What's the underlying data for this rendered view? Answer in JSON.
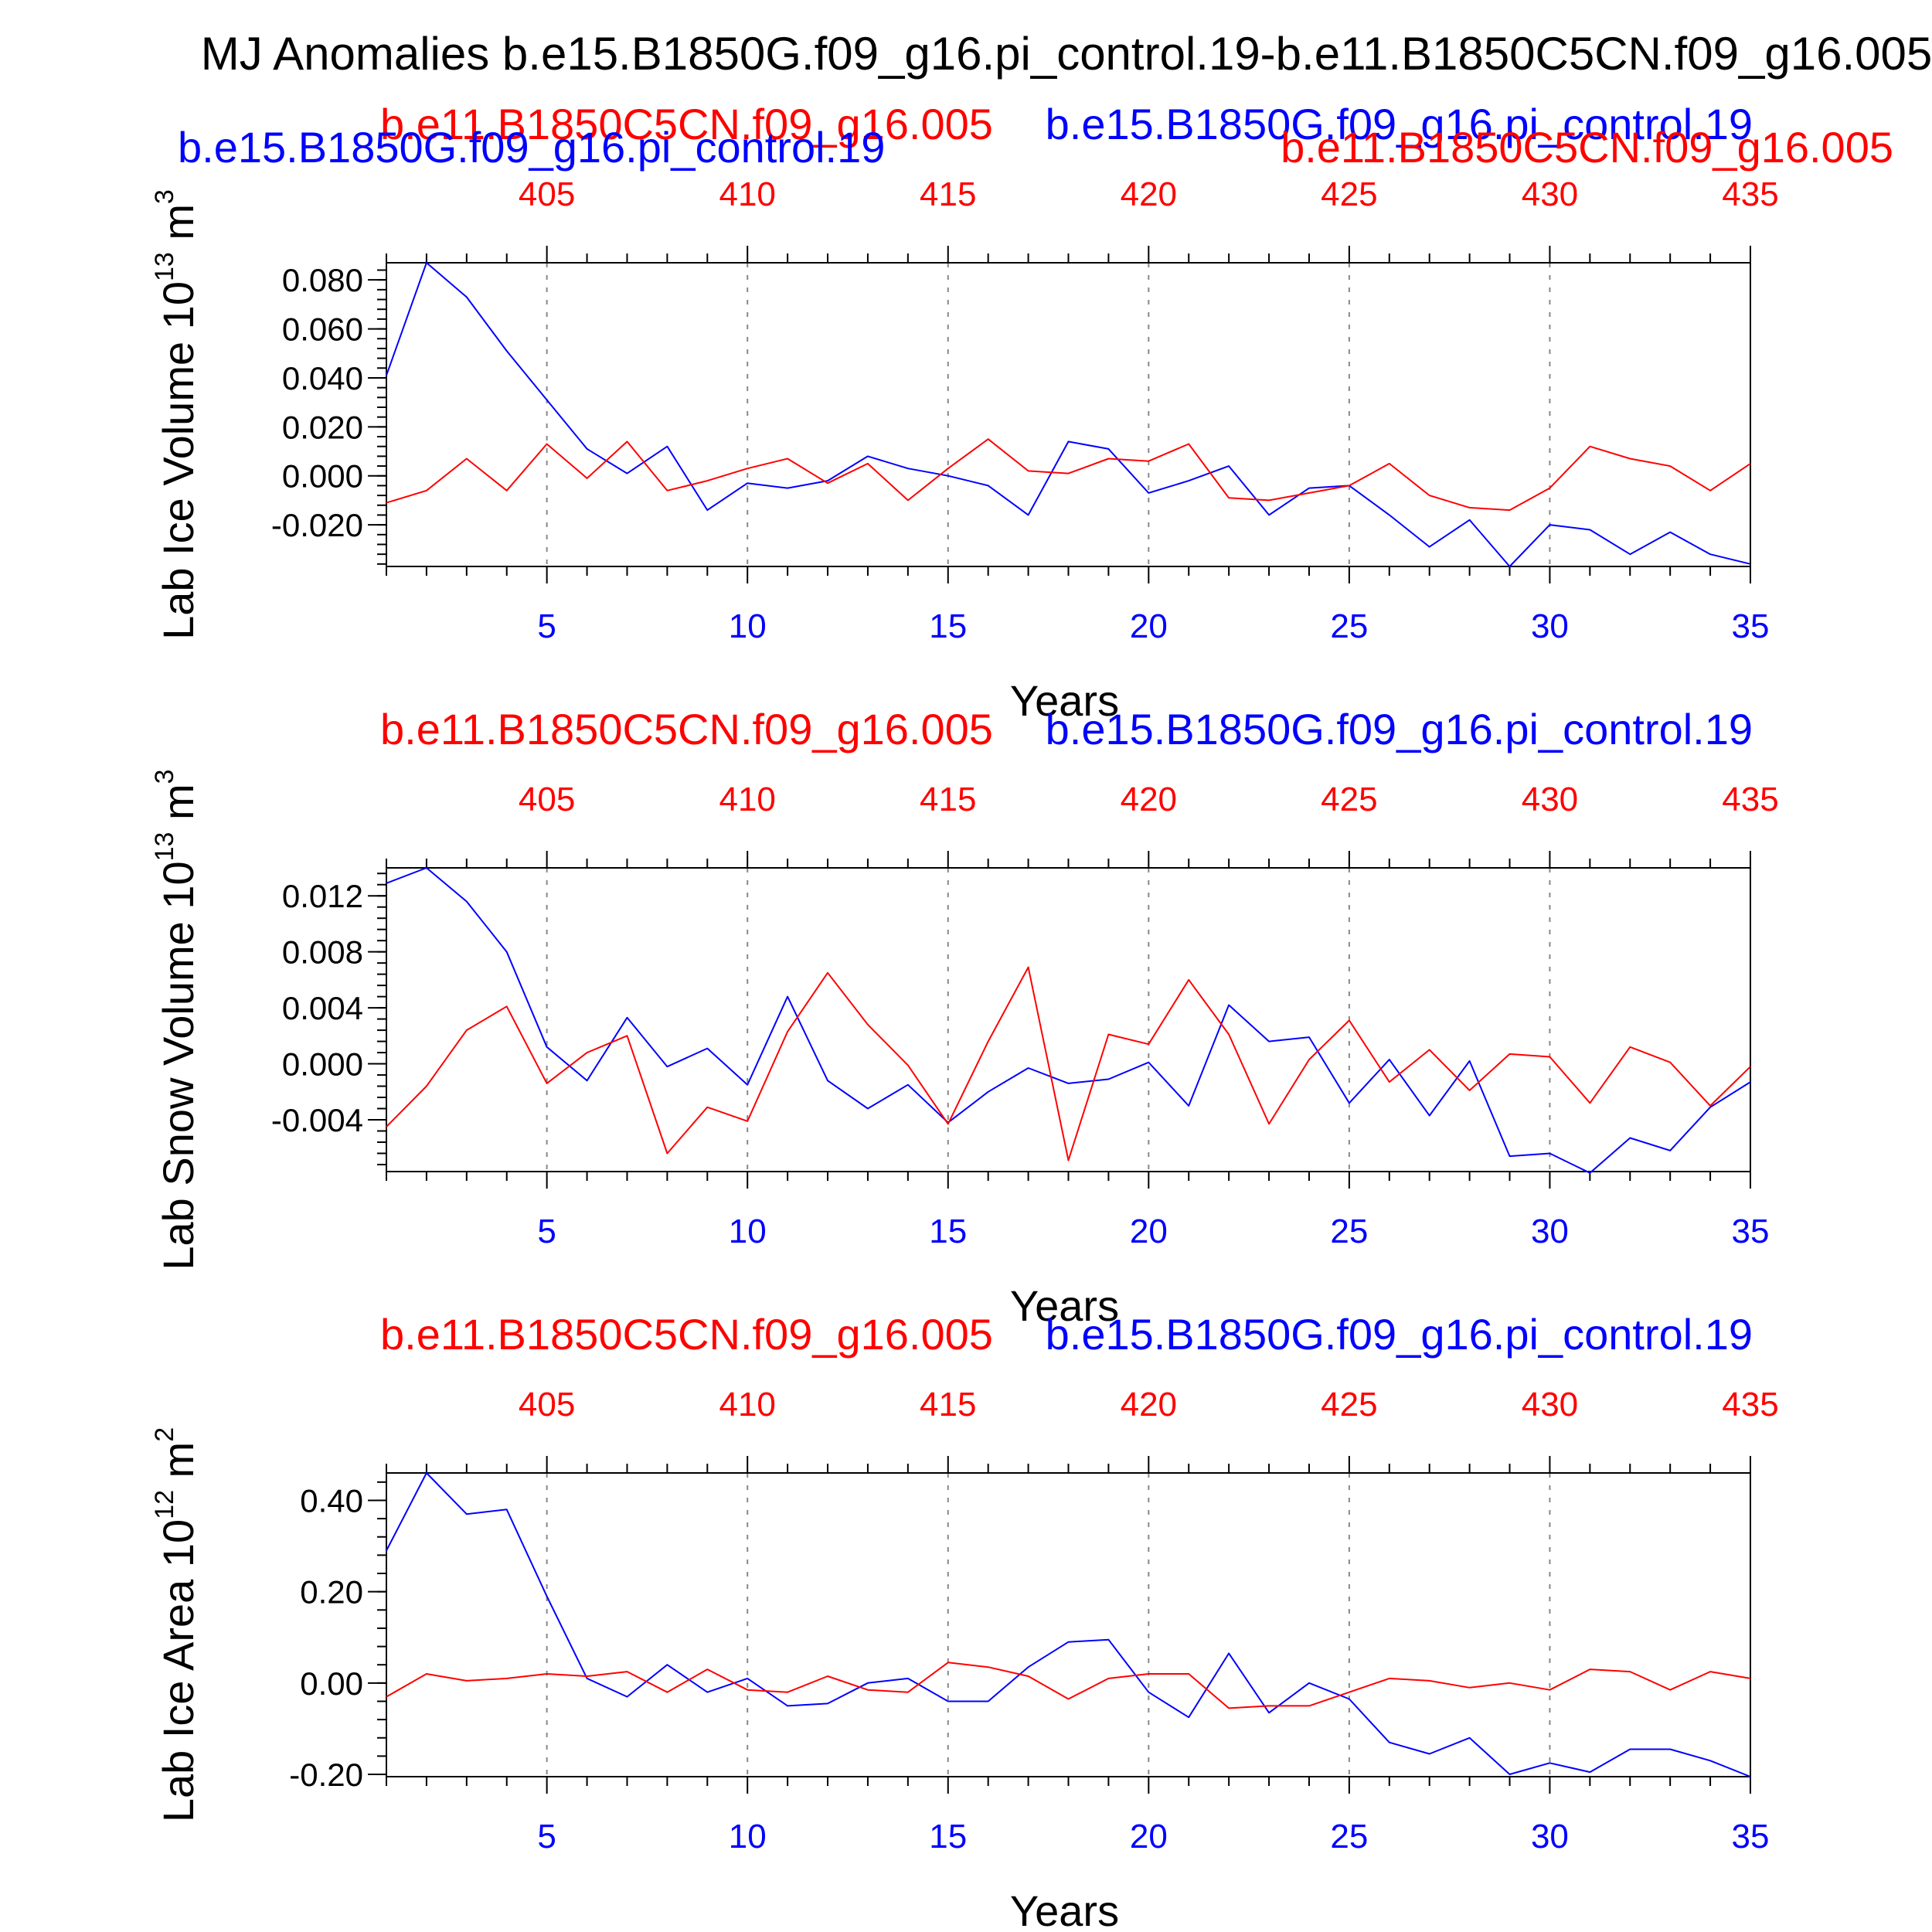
{
  "title": "MJ Anomalies b.e15.B1850G.f09_g16.pi_control.19-b.e11.B1850C5CN.f09_g16.005",
  "colors": {
    "blue": "#0000ff",
    "red": "#ff0000",
    "axis": "#000000",
    "grid": "#888888"
  },
  "chart_data": [
    {
      "type": "line",
      "ylabel": "Lab Ice Volume 10",
      "ylabel_exp": "13",
      "ylabel_unit": " m",
      "ylabel_unit_exp": "3",
      "xlabel": "Years",
      "legend_red": "b.e11.B1850C5CN.f09_g16.005",
      "legend_blue": "b.e15.B1850G.f09_g16.pi_control.19",
      "extra_legend_blue": "b.e15.B1850G.f09_g16.pi_control.19",
      "extra_legend_red": "b.e11.B1850C5CN.f09_g16.005",
      "xlim": [
        1,
        35
      ],
      "ylim": [
        -0.037,
        0.087
      ],
      "bottom_ticks": [
        5,
        10,
        15,
        20,
        25,
        30,
        35
      ],
      "top_ticks": [
        405,
        410,
        415,
        420,
        425,
        430,
        435
      ],
      "y_ticks": [
        "0.080",
        "0.060",
        "0.040",
        "0.020",
        "0.000",
        "-0.020"
      ],
      "y_tick_values": [
        0.08,
        0.06,
        0.04,
        0.02,
        0.0,
        -0.02
      ],
      "y_minor_step": 0.004,
      "x": [
        1,
        2,
        3,
        4,
        5,
        6,
        7,
        8,
        9,
        10,
        11,
        12,
        13,
        14,
        15,
        16,
        17,
        18,
        19,
        20,
        21,
        22,
        23,
        24,
        25,
        26,
        27,
        28,
        29,
        30,
        31,
        32,
        33,
        34,
        35
      ],
      "series": [
        {
          "color": "blue",
          "values": [
            0.041,
            0.087,
            0.073,
            0.051,
            0.031,
            0.011,
            0.001,
            0.012,
            -0.014,
            -0.003,
            -0.005,
            -0.002,
            0.008,
            0.003,
            0.0,
            -0.004,
            -0.016,
            0.014,
            0.011,
            -0.007,
            -0.002,
            0.004,
            -0.016,
            -0.005,
            -0.004,
            -0.016,
            -0.029,
            -0.018,
            -0.037,
            -0.02,
            -0.022,
            -0.032,
            -0.023,
            -0.032,
            -0.036
          ]
        },
        {
          "color": "red",
          "values": [
            -0.011,
            -0.006,
            0.007,
            -0.006,
            0.013,
            -0.001,
            0.014,
            -0.006,
            -0.002,
            0.003,
            0.007,
            -0.003,
            0.005,
            -0.01,
            0.003,
            0.015,
            0.002,
            0.001,
            0.007,
            0.006,
            0.013,
            -0.009,
            -0.01,
            -0.007,
            -0.004,
            0.005,
            -0.008,
            -0.013,
            -0.014,
            -0.005,
            0.012,
            0.007,
            0.004,
            -0.006,
            0.005
          ]
        }
      ]
    },
    {
      "type": "line",
      "ylabel": "Lab Snow Volume 10",
      "ylabel_exp": "13",
      "ylabel_unit": " m",
      "ylabel_unit_exp": "3",
      "xlabel": "Years",
      "legend_red": "b.e11.B1850C5CN.f09_g16.005",
      "legend_blue": "b.e15.B1850G.f09_g16.pi_control.19",
      "xlim": [
        1,
        35
      ],
      "ylim": [
        -0.0077,
        0.014
      ],
      "bottom_ticks": [
        5,
        10,
        15,
        20,
        25,
        30,
        35
      ],
      "top_ticks": [
        405,
        410,
        415,
        420,
        425,
        430,
        435
      ],
      "y_ticks": [
        "0.012",
        "0.008",
        "0.004",
        "0.000",
        "-0.004"
      ],
      "y_tick_values": [
        0.012,
        0.008,
        0.004,
        0.0,
        -0.004
      ],
      "y_minor_step": 0.0008,
      "x": [
        1,
        2,
        3,
        4,
        5,
        6,
        7,
        8,
        9,
        10,
        11,
        12,
        13,
        14,
        15,
        16,
        17,
        18,
        19,
        20,
        21,
        22,
        23,
        24,
        25,
        26,
        27,
        28,
        29,
        30,
        31,
        32,
        33,
        34,
        35
      ],
      "series": [
        {
          "color": "blue",
          "values": [
            0.0129,
            0.014,
            0.0116,
            0.008,
            0.0012,
            -0.0012,
            0.0033,
            -0.0002,
            0.0011,
            -0.0015,
            0.0048,
            -0.0012,
            -0.0032,
            -0.0015,
            -0.0042,
            -0.002,
            -0.0003,
            -0.0014,
            -0.0011,
            0.0001,
            -0.003,
            0.0042,
            0.0016,
            0.0019,
            -0.0028,
            0.0003,
            -0.0037,
            0.0002,
            -0.0066,
            -0.0064,
            -0.0078,
            -0.0053,
            -0.0062,
            -0.0031,
            -0.0013
          ]
        },
        {
          "color": "red",
          "values": [
            -0.0045,
            -0.0016,
            0.0024,
            0.0041,
            -0.0014,
            0.0008,
            0.002,
            -0.0064,
            -0.0031,
            -0.0041,
            0.0023,
            0.0065,
            0.0028,
            -0.0001,
            -0.0043,
            0.0016,
            0.0069,
            -0.0069,
            0.0021,
            0.0014,
            0.006,
            0.0021,
            -0.0043,
            0.0003,
            0.0031,
            -0.0013,
            0.001,
            -0.0019,
            0.0007,
            0.0005,
            -0.0028,
            0.0012,
            0.0001,
            -0.003,
            -0.0002
          ]
        }
      ]
    },
    {
      "type": "line",
      "ylabel": "Lab Ice Area 10",
      "ylabel_exp": "12",
      "ylabel_unit": " m",
      "ylabel_unit_exp": "2",
      "xlabel": "Years",
      "legend_red": "b.e11.B1850C5CN.f09_g16.005",
      "legend_blue": "b.e15.B1850G.f09_g16.pi_control.19",
      "xlim": [
        1,
        35
      ],
      "ylim": [
        -0.205,
        0.46
      ],
      "bottom_ticks": [
        5,
        10,
        15,
        20,
        25,
        30,
        35
      ],
      "top_ticks": [
        405,
        410,
        415,
        420,
        425,
        430,
        435
      ],
      "y_ticks": [
        "0.40",
        "0.20",
        "0.00",
        "-0.20"
      ],
      "y_tick_values": [
        0.4,
        0.2,
        0.0,
        -0.2
      ],
      "y_minor_step": 0.04,
      "x": [
        1,
        2,
        3,
        4,
        5,
        6,
        7,
        8,
        9,
        10,
        11,
        12,
        13,
        14,
        15,
        16,
        17,
        18,
        19,
        20,
        21,
        22,
        23,
        24,
        25,
        26,
        27,
        28,
        29,
        30,
        31,
        32,
        33,
        34,
        35
      ],
      "series": [
        {
          "color": "blue",
          "values": [
            0.29,
            0.46,
            0.37,
            0.38,
            0.19,
            0.01,
            -0.03,
            0.04,
            -0.02,
            0.01,
            -0.05,
            -0.045,
            0.0,
            0.01,
            -0.04,
            -0.04,
            0.035,
            0.09,
            0.095,
            -0.02,
            -0.075,
            0.065,
            -0.065,
            0.0,
            -0.035,
            -0.13,
            -0.155,
            -0.12,
            -0.2,
            -0.175,
            -0.195,
            -0.145,
            -0.145,
            -0.17,
            -0.205
          ]
        },
        {
          "color": "red",
          "values": [
            -0.03,
            0.02,
            0.005,
            0.01,
            0.02,
            0.015,
            0.025,
            -0.02,
            0.03,
            -0.015,
            -0.02,
            0.015,
            -0.015,
            -0.02,
            0.045,
            0.035,
            0.015,
            -0.035,
            0.01,
            0.02,
            0.02,
            -0.055,
            -0.05,
            -0.05,
            -0.02,
            0.01,
            0.005,
            -0.01,
            0.0,
            -0.015,
            0.03,
            0.025,
            -0.015,
            0.025,
            0.01
          ]
        }
      ]
    }
  ]
}
